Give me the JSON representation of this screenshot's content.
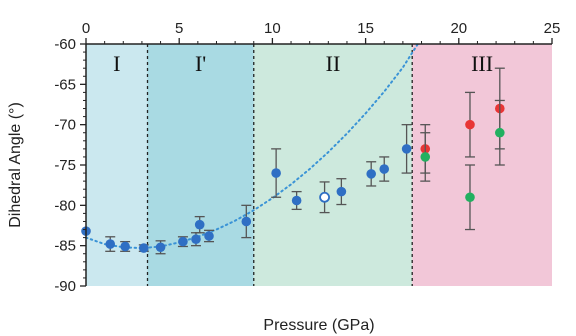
{
  "chart_data": {
    "type": "scatter",
    "xlabel": "Pressure (GPa)",
    "ylabel": "Dihedral Angle (°)",
    "xlim": [
      0,
      25
    ],
    "ylim": [
      -90,
      -60
    ],
    "x_ticks": [
      0,
      5,
      10,
      15,
      20,
      25
    ],
    "y_ticks": [
      -60,
      -65,
      -70,
      -75,
      -80,
      -85,
      -90
    ],
    "x_axis_position": "top",
    "grid": false,
    "regions": [
      {
        "label": "I",
        "x_start": 0,
        "x_end": 3.3,
        "color": "#cbe8ef"
      },
      {
        "label": "I'",
        "x_start": 3.3,
        "x_end": 9.0,
        "color": "#a9dae3"
      },
      {
        "label": "II",
        "x_start": 9.0,
        "x_end": 17.5,
        "color": "#cde9dd"
      },
      {
        "label": "III",
        "x_start": 17.5,
        "x_end": 25,
        "color": "#f2c7d8"
      }
    ],
    "series": [
      {
        "color": "#2f6fc4",
        "marker": "filled",
        "points": [
          {
            "x": 0.0,
            "y": -83.2,
            "err": 0
          },
          {
            "x": 1.3,
            "y": -84.8,
            "err": 0.9
          },
          {
            "x": 2.1,
            "y": -85.1,
            "err": 0.6
          },
          {
            "x": 3.1,
            "y": -85.3,
            "err": 0.4
          },
          {
            "x": 4.0,
            "y": -85.2,
            "err": 0.8
          },
          {
            "x": 5.2,
            "y": -84.5,
            "err": 0.6
          },
          {
            "x": 5.9,
            "y": -84.2,
            "err": 0.8
          },
          {
            "x": 6.1,
            "y": -82.4,
            "err": 1.0
          },
          {
            "x": 6.6,
            "y": -83.8,
            "err": 0.7
          },
          {
            "x": 8.6,
            "y": -82.0,
            "err": 2.0
          },
          {
            "x": 10.2,
            "y": -76.0,
            "err": 3.0
          },
          {
            "x": 11.3,
            "y": -79.4,
            "err": 1.1
          },
          {
            "x": 13.7,
            "y": -78.3,
            "err": 1.6
          },
          {
            "x": 15.3,
            "y": -76.1,
            "err": 1.5
          },
          {
            "x": 16.0,
            "y": -75.5,
            "err": 1.5
          },
          {
            "x": 17.2,
            "y": -73.0,
            "err": 3.0
          }
        ]
      },
      {
        "color": "#2f6fc4",
        "marker": "open",
        "points": [
          {
            "x": 12.8,
            "y": -79.0,
            "err": 1.9
          }
        ]
      },
      {
        "color": "#e83535",
        "marker": "filled",
        "points": [
          {
            "x": 18.2,
            "y": -73.0,
            "err": 3.0
          },
          {
            "x": 20.6,
            "y": -70.0,
            "err": 4.0
          },
          {
            "x": 22.2,
            "y": -68.0,
            "err": 5.0
          }
        ]
      },
      {
        "color": "#22b060",
        "marker": "filled",
        "points": [
          {
            "x": 18.2,
            "y": -74.0,
            "err": 3.0
          },
          {
            "x": 20.6,
            "y": -79.0,
            "err": 4.0
          },
          {
            "x": 22.2,
            "y": -71.0,
            "err": 4.0
          }
        ]
      }
    ],
    "trend_curve": {
      "style": "dotted",
      "color": "#3a93d6",
      "points": [
        {
          "x": 0,
          "y": -84.0
        },
        {
          "x": 1,
          "y": -84.8
        },
        {
          "x": 2,
          "y": -85.2
        },
        {
          "x": 3,
          "y": -85.3
        },
        {
          "x": 4,
          "y": -85.1
        },
        {
          "x": 5,
          "y": -84.6
        },
        {
          "x": 6,
          "y": -83.9
        },
        {
          "x": 7,
          "y": -83.0
        },
        {
          "x": 8,
          "y": -81.9
        },
        {
          "x": 9,
          "y": -80.6
        },
        {
          "x": 10,
          "y": -79.1
        },
        {
          "x": 11,
          "y": -77.4
        },
        {
          "x": 12,
          "y": -75.5
        },
        {
          "x": 13,
          "y": -73.4
        },
        {
          "x": 14,
          "y": -71.1
        },
        {
          "x": 15,
          "y": -68.6
        },
        {
          "x": 16,
          "y": -65.9
        },
        {
          "x": 17,
          "y": -62.9
        },
        {
          "x": 17.8,
          "y": -60.0
        }
      ]
    }
  }
}
